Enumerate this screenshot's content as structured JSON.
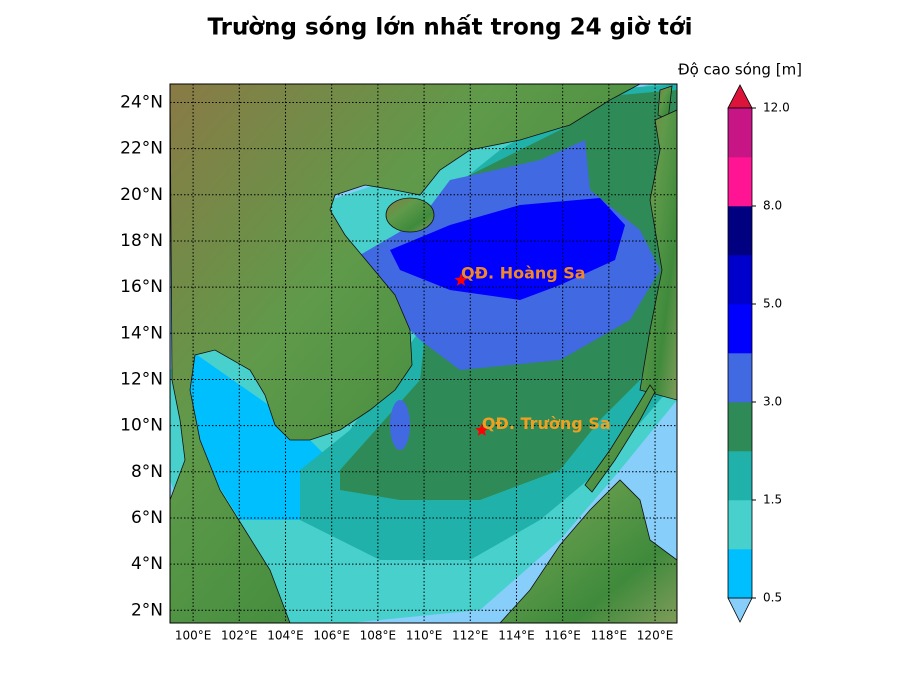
{
  "title": "Trường sóng lớn nhất trong 24 giờ tới",
  "map": {
    "xlim": [
      99.0,
      120.95
    ],
    "ylim": [
      1.45,
      24.8
    ],
    "grid": true,
    "xticks": [
      {
        "value": 100,
        "label": "100°E"
      },
      {
        "value": 102,
        "label": "102°E"
      },
      {
        "value": 104,
        "label": "104°E"
      },
      {
        "value": 106,
        "label": "106°E"
      },
      {
        "value": 108,
        "label": "108°E"
      },
      {
        "value": 110,
        "label": "110°E"
      },
      {
        "value": 112,
        "label": "112°E"
      },
      {
        "value": 114,
        "label": "114°E"
      },
      {
        "value": 116,
        "label": "116°E"
      },
      {
        "value": 118,
        "label": "118°E"
      },
      {
        "value": 120,
        "label": "120°E"
      }
    ],
    "yticks": [
      {
        "value": 2,
        "label": "2°N"
      },
      {
        "value": 4,
        "label": "4°N"
      },
      {
        "value": 6,
        "label": "6°N"
      },
      {
        "value": 8,
        "label": "8°N"
      },
      {
        "value": 10,
        "label": "10°N"
      },
      {
        "value": 12,
        "label": "12°N"
      },
      {
        "value": 14,
        "label": "14°N"
      },
      {
        "value": 16,
        "label": "16°N"
      },
      {
        "value": 18,
        "label": "18°N"
      },
      {
        "value": 20,
        "label": "20°N"
      },
      {
        "value": 22,
        "label": "22°N"
      },
      {
        "value": 24,
        "label": "24°N"
      }
    ],
    "annotations": [
      {
        "text": "QĐ. Hoàng Sa",
        "lon": 111.6,
        "lat": 16.3,
        "color": "#f0882a",
        "marker_color": "#ff0000"
      },
      {
        "text": "QĐ. Trường Sa",
        "lon": 112.5,
        "lat": 9.8,
        "color": "#f0a020",
        "marker_color": "#ff0000"
      }
    ]
  },
  "colorbar": {
    "label": "Độ cao sóng [m]",
    "ticks": [
      {
        "value": 0.5,
        "label": "0.5"
      },
      {
        "value": 1.5,
        "label": "1.5"
      },
      {
        "value": 3,
        "label": "3.0"
      },
      {
        "value": 5,
        "label": "5.0"
      },
      {
        "value": 8,
        "label": "8.0"
      },
      {
        "value": 12,
        "label": "12.0"
      }
    ],
    "colors": [
      "#00bfff",
      "#48d1cc",
      "#20b2aa",
      "#2e8b57",
      "#4169e1",
      "#0000ff",
      "#0000cd",
      "#000080",
      "#ff1493",
      "#c71585"
    ],
    "under_color": "#87cefa",
    "over_color": "#dc143c"
  }
}
